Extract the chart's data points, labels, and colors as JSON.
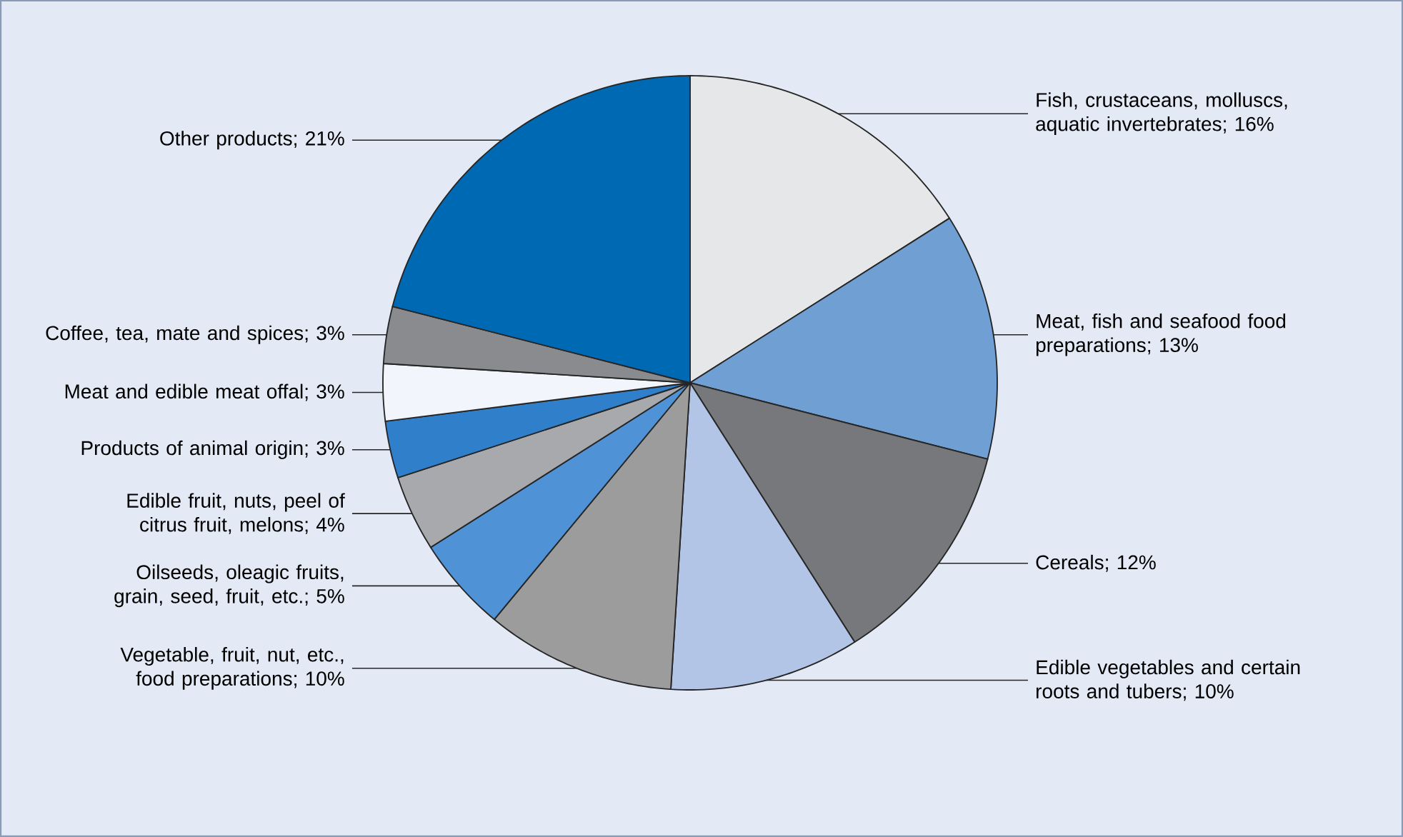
{
  "chart_data": {
    "type": "pie",
    "categories": [
      "Fish, crustaceans, molluscs, aquatic invertebrates; 16%",
      "Meat, fish and seafood food preparations; 13%",
      "Cereals; 12%",
      "Edible vegetables and certain roots and tubers; 10%",
      "Vegetable, fruit, nut, etc., food preparations; 10%",
      "Oilseeds, oleagic fruits, grain, seed, fruit, etc.; 5%",
      "Edible fruit, nuts, peel of citrus fruit, melons; 4%",
      "Products of animal origin; 3%",
      "Meat and edible meat offal; 3%",
      "Coffee, tea, mate and spices; 3%",
      "Other products; 21%"
    ],
    "values": [
      16,
      13,
      12,
      10,
      10,
      5,
      4,
      3,
      3,
      3,
      21
    ],
    "colors": [
      "#e6e7e8",
      "#6f9fd3",
      "#77787b",
      "#b3c5e6",
      "#9c9c9c",
      "#4f93d6",
      "#a7a9ac",
      "#2f7fcb",
      "#f2f5fb",
      "#8a8b8e",
      "#0069b4"
    ]
  }
}
